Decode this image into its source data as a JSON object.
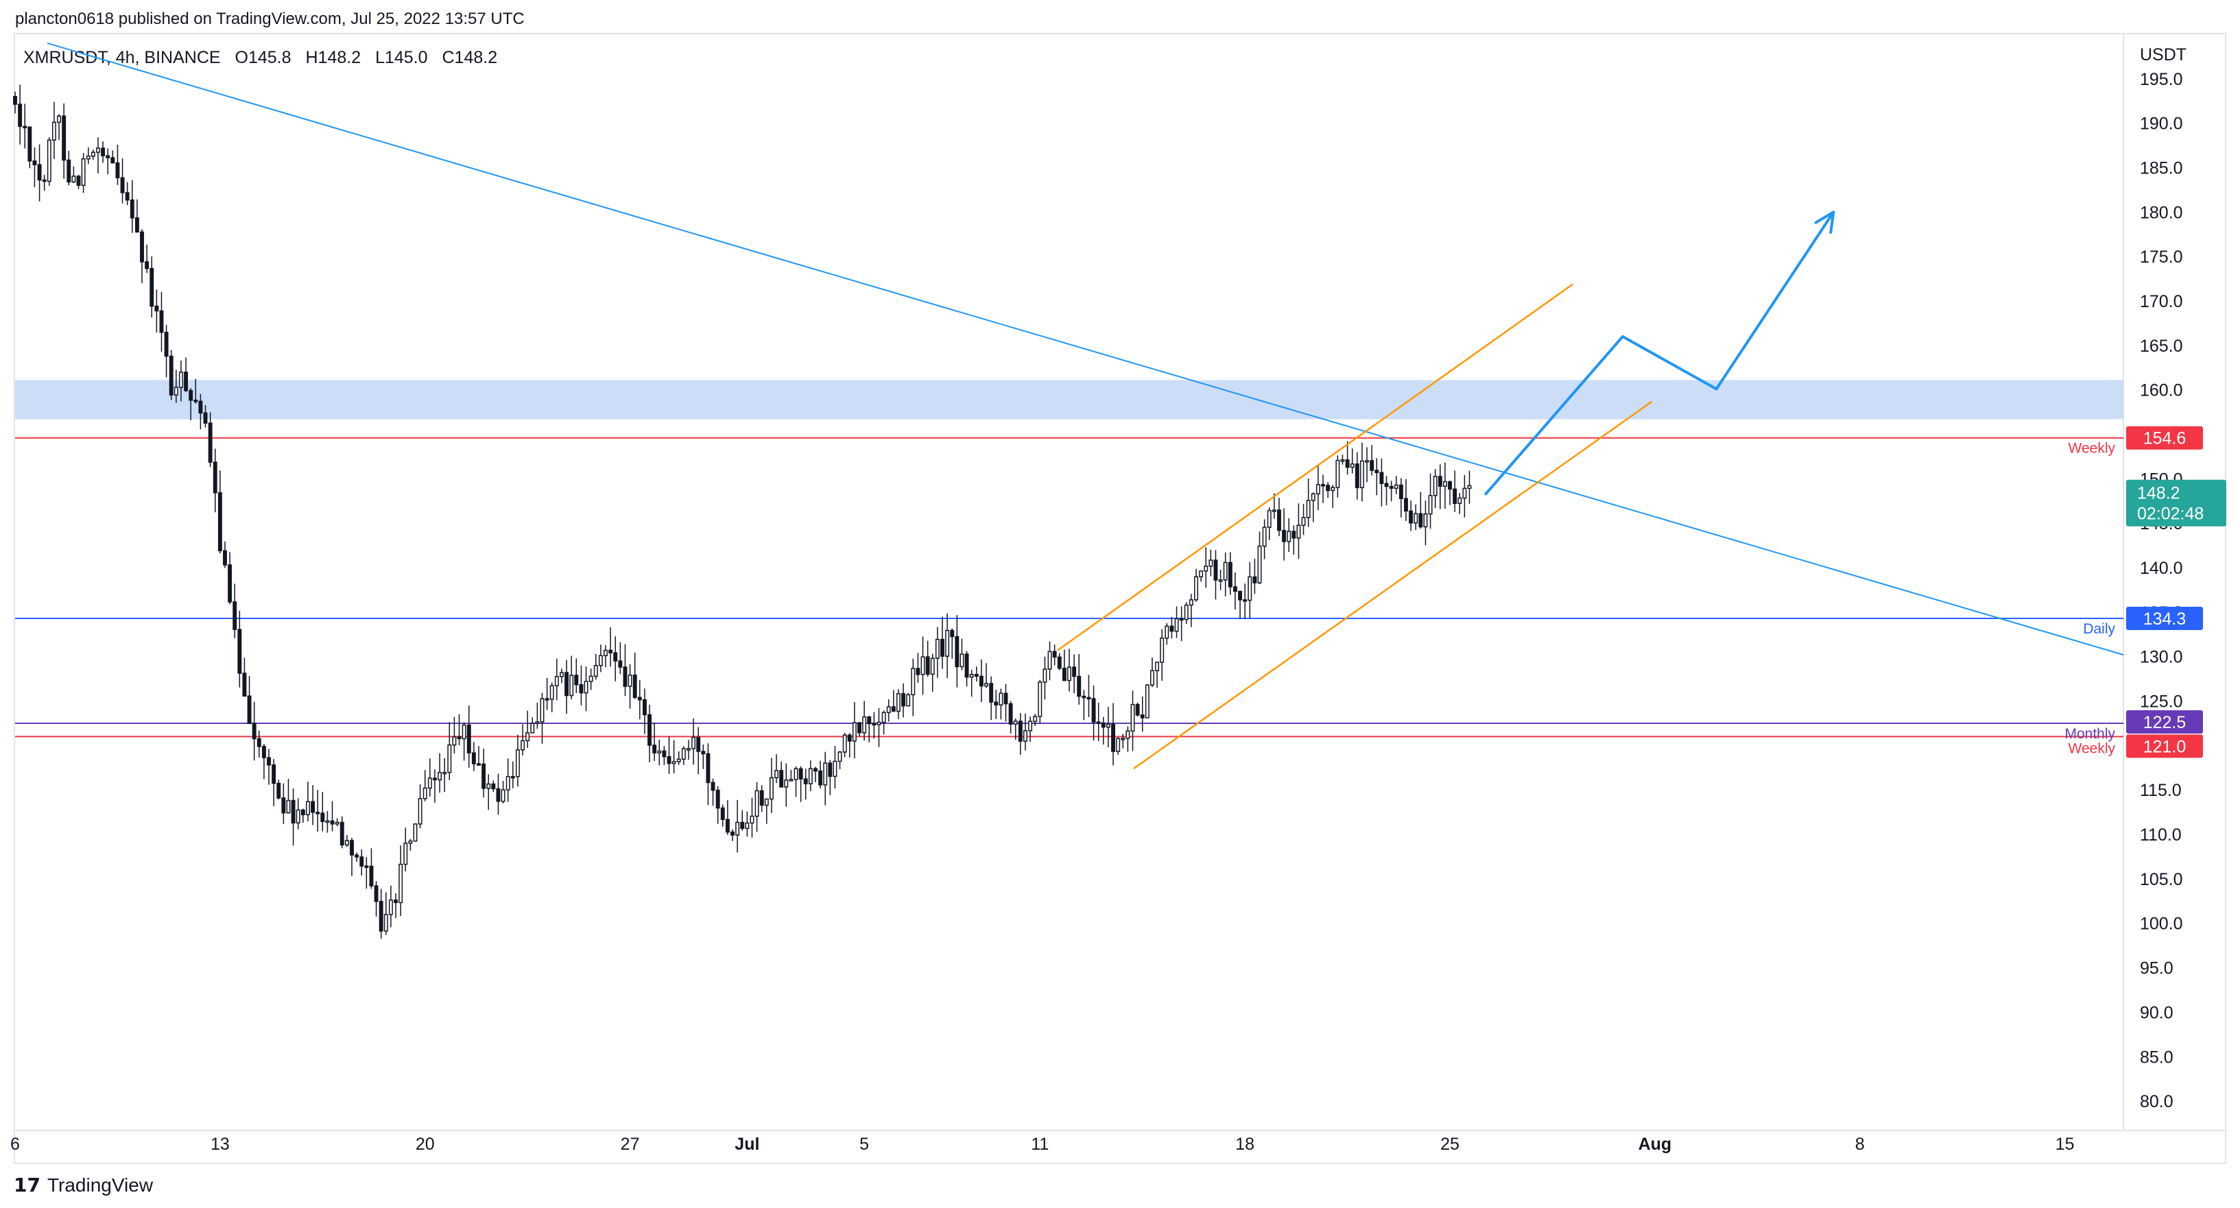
{
  "header": {
    "publisher_line": "plancton0618 published on TradingView.com, Jul 25, 2022 13:57 UTC"
  },
  "legend": {
    "symbol": "XMRUSDT, 4h, BINANCE",
    "open": "O145.8",
    "high": "H148.2",
    "low": "L145.0",
    "close": "C148.2"
  },
  "footer": {
    "logo_glyph": "17",
    "brand": "TradingView"
  },
  "colors": {
    "up": "#ffffff",
    "down": "#131722",
    "wick": "#131722",
    "trend_blue": "#2196f3",
    "channel_orange": "#ff9800",
    "level_red": "#f23645",
    "daily_blue": "#2962ff",
    "monthly_purple": "#673ab7",
    "zone_fill": "#c3d7f7",
    "price_tag": "#26a69a"
  },
  "chart_data": {
    "type": "candlestick",
    "timeframe": "4h",
    "y_axis_label": "USDT",
    "ylim": [
      77,
      200
    ],
    "y_ticks": [
      80,
      85,
      90,
      95,
      100,
      105,
      110,
      115,
      120,
      125,
      130,
      135,
      140,
      145,
      150,
      155,
      160,
      165,
      170,
      175,
      180,
      185,
      190,
      195
    ],
    "x_ticks": [
      {
        "day": 6,
        "label": "6"
      },
      {
        "day": 13,
        "label": "13"
      },
      {
        "day": 20,
        "label": "20"
      },
      {
        "day": 27,
        "label": "27"
      },
      {
        "day": 31,
        "label": "Jul"
      },
      {
        "day": 35,
        "label": "5"
      },
      {
        "day": 41,
        "label": "11"
      },
      {
        "day": 48,
        "label": "18"
      },
      {
        "day": 55,
        "label": "25"
      },
      {
        "day": 62,
        "label": "Aug"
      },
      {
        "day": 69,
        "label": "8"
      },
      {
        "day": 76,
        "label": "15"
      }
    ],
    "xlim": [
      6,
      78
    ],
    "path_points": [
      [
        6.0,
        193
      ],
      [
        6.6,
        188
      ],
      [
        7.1,
        183
      ],
      [
        7.6,
        191
      ],
      [
        8.1,
        183
      ],
      [
        8.6,
        186
      ],
      [
        9.1,
        186
      ],
      [
        9.6,
        184
      ],
      [
        10.1,
        182
      ],
      [
        10.6,
        173
      ],
      [
        11.1,
        167
      ],
      [
        11.5,
        160
      ],
      [
        12.0,
        161
      ],
      [
        12.5,
        158
      ],
      [
        12.9,
        150
      ],
      [
        13.3,
        140
      ],
      [
        13.7,
        131
      ],
      [
        14.1,
        125
      ],
      [
        14.5,
        119
      ],
      [
        14.9,
        117
      ],
      [
        15.3,
        113
      ],
      [
        15.7,
        112
      ],
      [
        16.1,
        112
      ],
      [
        16.5,
        113
      ],
      [
        16.9,
        112
      ],
      [
        17.3,
        110
      ],
      [
        17.7,
        109
      ],
      [
        18.1,
        106
      ],
      [
        18.5,
        101
      ],
      [
        18.8,
        100
      ],
      [
        19.2,
        104
      ],
      [
        19.6,
        109
      ],
      [
        20.0,
        113
      ],
      [
        20.5,
        116
      ],
      [
        21.0,
        119
      ],
      [
        21.5,
        121
      ],
      [
        22.0,
        117
      ],
      [
        22.5,
        114
      ],
      [
        23.0,
        116
      ],
      [
        23.5,
        120
      ],
      [
        24.0,
        124
      ],
      [
        24.5,
        126
      ],
      [
        25.0,
        127
      ],
      [
        25.5,
        126
      ],
      [
        26.0,
        128
      ],
      [
        26.5,
        132
      ],
      [
        27.0,
        128
      ],
      [
        27.5,
        124
      ],
      [
        28.0,
        120
      ],
      [
        28.5,
        118
      ],
      [
        29.0,
        119
      ],
      [
        29.5,
        120
      ],
      [
        30.0,
        116
      ],
      [
        30.5,
        111
      ],
      [
        31.0,
        112
      ],
      [
        31.5,
        114
      ],
      [
        32.0,
        116
      ],
      [
        32.5,
        117
      ],
      [
        33.0,
        117
      ],
      [
        33.5,
        116
      ],
      [
        34.0,
        117
      ],
      [
        34.5,
        120
      ],
      [
        35.0,
        122
      ],
      [
        35.5,
        123
      ],
      [
        36.0,
        124
      ],
      [
        36.5,
        126
      ],
      [
        37.0,
        128
      ],
      [
        37.5,
        130
      ],
      [
        38.0,
        132
      ],
      [
        38.5,
        129
      ],
      [
        39.0,
        127
      ],
      [
        39.5,
        126
      ],
      [
        40.0,
        125
      ],
      [
        40.5,
        122
      ],
      [
        41.0,
        124
      ],
      [
        41.5,
        129
      ],
      [
        42.0,
        128
      ],
      [
        42.5,
        126
      ],
      [
        43.0,
        124
      ],
      [
        43.5,
        121
      ],
      [
        43.9,
        120
      ],
      [
        44.3,
        123
      ],
      [
        44.7,
        124
      ],
      [
        45.1,
        129
      ],
      [
        45.5,
        133
      ],
      [
        45.9,
        134
      ],
      [
        46.3,
        136
      ],
      [
        46.7,
        141
      ],
      [
        47.1,
        139
      ],
      [
        47.5,
        140
      ],
      [
        47.9,
        138
      ],
      [
        48.3,
        137
      ],
      [
        48.7,
        142
      ],
      [
        49.1,
        147
      ],
      [
        49.5,
        143
      ],
      [
        49.9,
        143
      ],
      [
        50.3,
        146
      ],
      [
        50.7,
        148
      ],
      [
        51.1,
        150
      ],
      [
        51.5,
        151
      ],
      [
        51.9,
        150
      ],
      [
        52.3,
        152
      ],
      [
        52.7,
        149
      ],
      [
        53.1,
        149
      ],
      [
        53.5,
        149
      ],
      [
        53.9,
        145
      ],
      [
        54.3,
        146
      ],
      [
        54.7,
        150
      ],
      [
        55.1,
        148
      ],
      [
        55.4,
        146
      ],
      [
        55.8,
        148.2
      ]
    ],
    "levels": [
      {
        "price": 154.6,
        "label": "154.6",
        "tag": "Weekly",
        "color": "#f23645"
      },
      {
        "price": 134.3,
        "label": "134.3",
        "tag": "Daily",
        "color": "#2962ff"
      },
      {
        "price": 122.5,
        "label": "122.5",
        "tag": "Monthly",
        "color": "#673ab7"
      },
      {
        "price": 121.0,
        "label": "121.0",
        "tag": "Weekly",
        "color": "#f23645"
      }
    ],
    "zone": {
      "from": 156.7,
      "to": 161.1
    },
    "trendline": {
      "from": [
        7.1,
        199
      ],
      "to": [
        78,
        130.2
      ]
    },
    "channel": {
      "upper": {
        "from": [
          41.6,
          130.7
        ],
        "to": [
          59.2,
          171.9
        ]
      },
      "lower": {
        "from": [
          44.2,
          117.4
        ],
        "to": [
          61.9,
          158.7
        ]
      }
    },
    "projection": [
      [
        56.2,
        148.2
      ],
      [
        60.9,
        166
      ],
      [
        64.1,
        160.1
      ],
      [
        68.1,
        180
      ]
    ],
    "current_price": {
      "price": 148.2,
      "label": "148.2",
      "countdown": "02:02:48"
    }
  }
}
